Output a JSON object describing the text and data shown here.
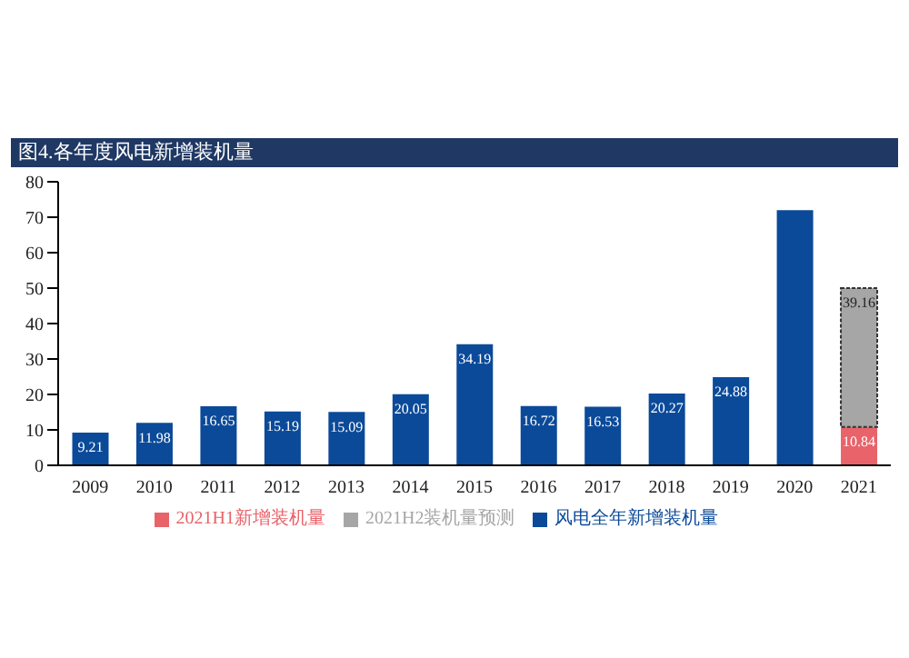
{
  "chart_data": {
    "type": "bar",
    "title": "图4.各年度风电新增装机量",
    "stacked": true,
    "legend": "bottom",
    "grid": false,
    "categories": [
      "2009",
      "2010",
      "2011",
      "2012",
      "2013",
      "2014",
      "2015",
      "2016",
      "2017",
      "2018",
      "2019",
      "2020",
      "2021"
    ],
    "ylim": [
      0,
      80
    ],
    "yticks": [
      0,
      10,
      20,
      30,
      40,
      50,
      60,
      70,
      80
    ],
    "series": [
      {
        "name": "风电全年新增装机量",
        "color": "#0b4a99",
        "values": [
          9.21,
          11.98,
          16.65,
          15.19,
          15.09,
          20.05,
          34.19,
          16.72,
          16.53,
          20.27,
          24.88,
          72,
          null
        ],
        "value_labels": [
          "9.21",
          "11.98",
          "16.65",
          "15.19",
          "15.09",
          "20.05",
          "34.19",
          "16.72",
          "16.53",
          "20.27",
          "24.88",
          null,
          null
        ]
      },
      {
        "name": "2021H1新增装机量",
        "color": "#e8636a",
        "values": [
          null,
          null,
          null,
          null,
          null,
          null,
          null,
          null,
          null,
          null,
          null,
          null,
          10.84
        ],
        "value_labels": [
          null,
          null,
          null,
          null,
          null,
          null,
          null,
          null,
          null,
          null,
          null,
          null,
          "10.84"
        ]
      },
      {
        "name": "2021H2装机量预测",
        "color": "#a6a6a6",
        "values": [
          null,
          null,
          null,
          null,
          null,
          null,
          null,
          null,
          null,
          null,
          null,
          null,
          39.16
        ],
        "value_labels": [
          null,
          null,
          null,
          null,
          null,
          null,
          null,
          null,
          null,
          null,
          null,
          null,
          "39.16"
        ]
      }
    ]
  }
}
